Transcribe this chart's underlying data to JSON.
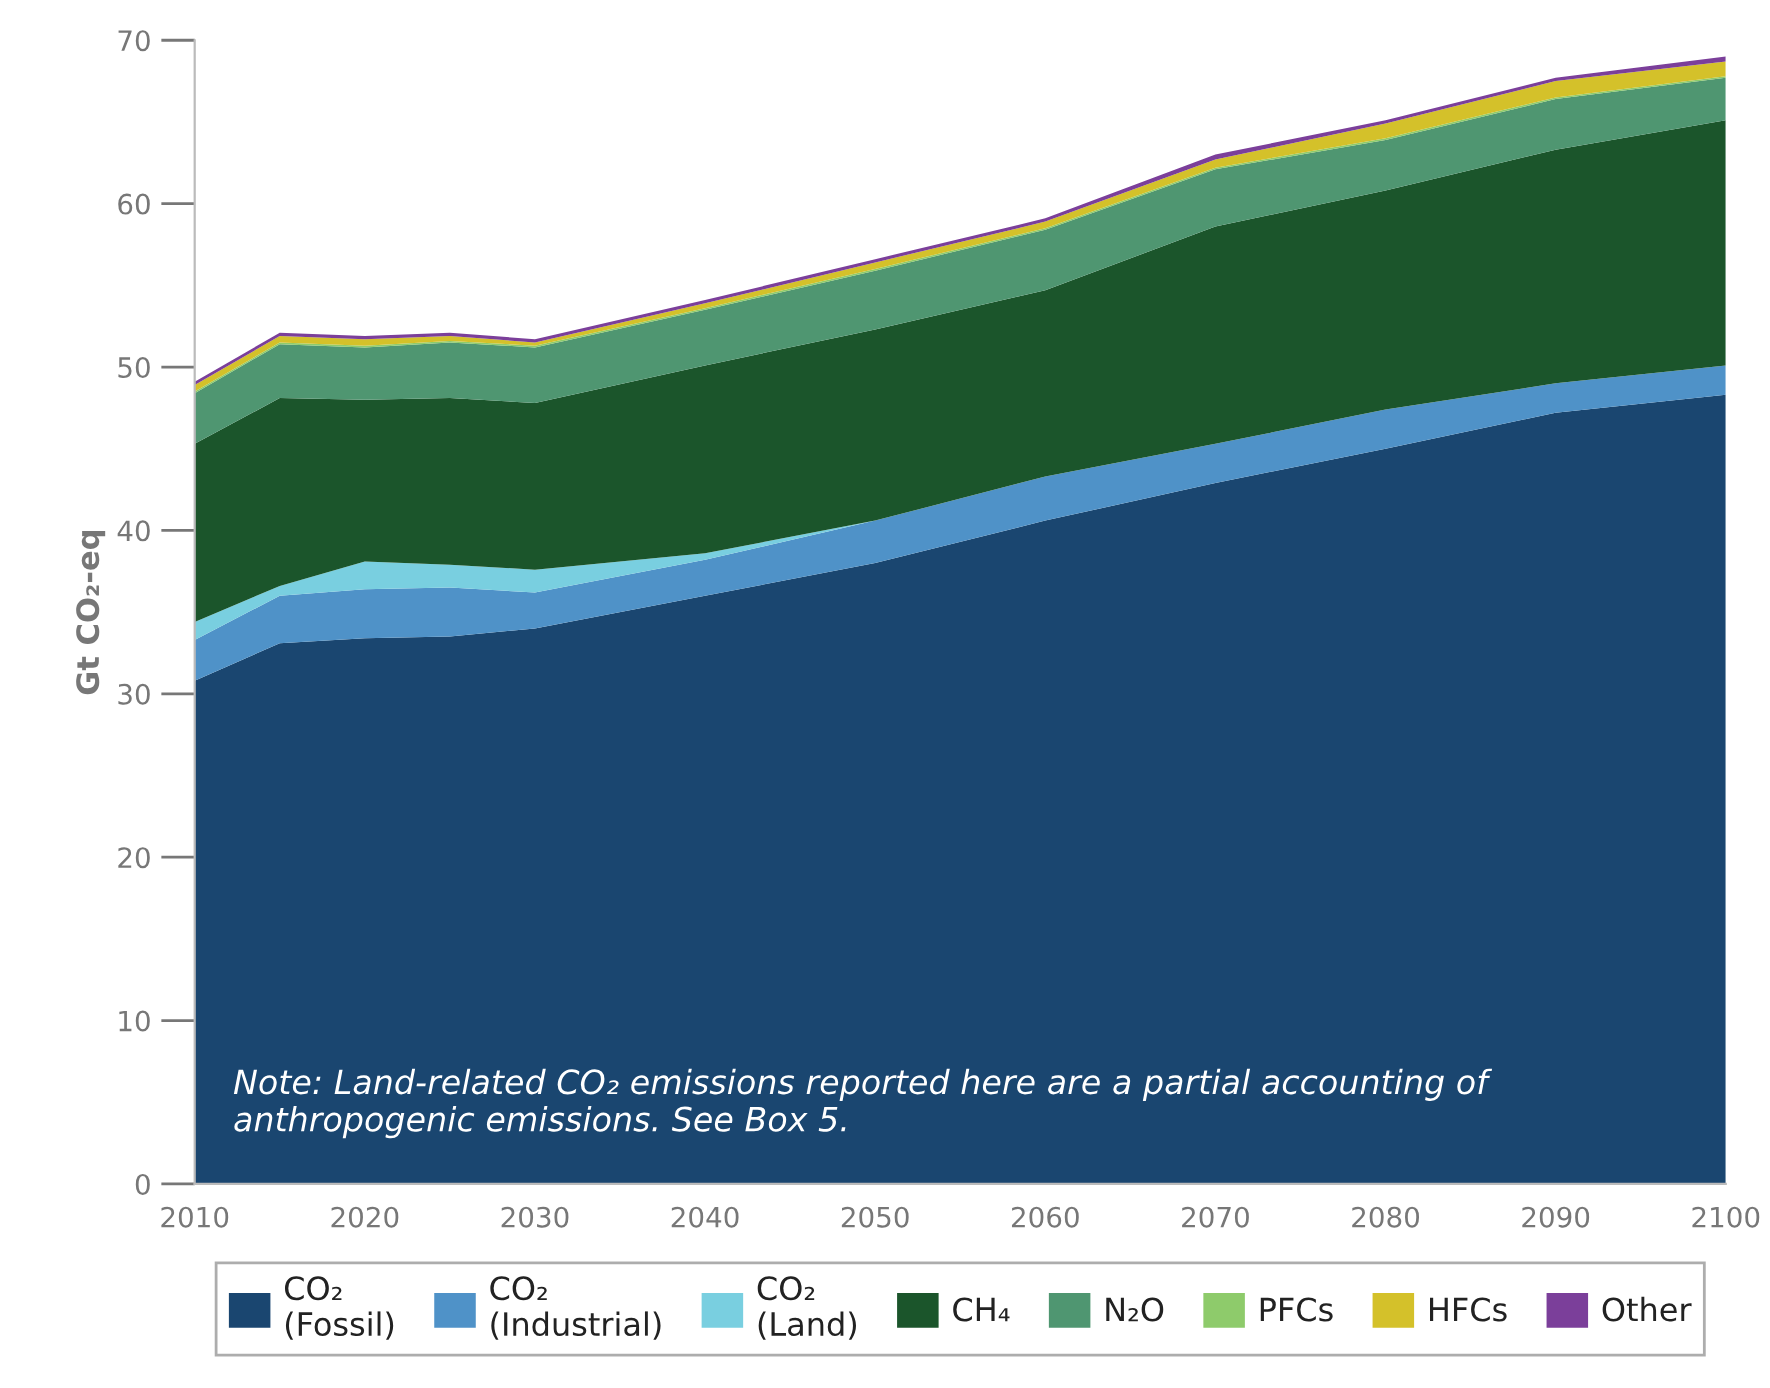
{
  "chart_data": {
    "type": "area",
    "stacked": true,
    "ylabel": "Gt CO₂-eq",
    "x": [
      2010,
      2015,
      2020,
      2025,
      2030,
      2040,
      2050,
      2060,
      2070,
      2080,
      2090,
      2100
    ],
    "xlim": [
      2010,
      2100
    ],
    "xticks": [
      2010,
      2020,
      2030,
      2040,
      2050,
      2060,
      2070,
      2080,
      2090,
      2100
    ],
    "ylim": [
      0,
      70
    ],
    "yticks": [
      0,
      10,
      20,
      30,
      40,
      50,
      60,
      70
    ],
    "grid": false,
    "legend": "bottom",
    "series": [
      {
        "name": "CO₂\n(Fossil)",
        "color": "#1a4670",
        "values": [
          30.8,
          33.1,
          33.4,
          33.5,
          34.0,
          36.0,
          38.0,
          40.6,
          42.9,
          45.0,
          47.2,
          48.3
        ]
      },
      {
        "name": "CO₂\n(Industrial)",
        "color": "#4f92c8",
        "values": [
          2.5,
          2.9,
          3.0,
          3.0,
          2.2,
          2.2,
          2.6,
          2.7,
          2.4,
          2.4,
          1.8,
          1.8
        ]
      },
      {
        "name": "CO₂\n(Land)",
        "color": "#79cfe0",
        "values": [
          1.1,
          0.6,
          1.7,
          1.4,
          1.4,
          0.4,
          0,
          0,
          0,
          0,
          0,
          0
        ]
      },
      {
        "name": "CH₄",
        "color": "#1b552b",
        "values": [
          10.9,
          11.5,
          9.9,
          10.2,
          10.2,
          11.5,
          11.7,
          11.4,
          13.3,
          13.4,
          14.3,
          15.0
        ]
      },
      {
        "name": "N₂O",
        "color": "#4f9671",
        "values": [
          3.1,
          3.3,
          3.2,
          3.4,
          3.4,
          3.4,
          3.6,
          3.7,
          3.5,
          3.1,
          3.1,
          2.6
        ]
      },
      {
        "name": "PFCs",
        "color": "#8ecb6b",
        "values": [
          0.1,
          0.1,
          0.1,
          0.1,
          0.1,
          0.1,
          0.1,
          0.1,
          0.1,
          0.1,
          0.1,
          0.1
        ]
      },
      {
        "name": "HFCs",
        "color": "#d4c12a",
        "values": [
          0.4,
          0.4,
          0.4,
          0.3,
          0.2,
          0.3,
          0.4,
          0.4,
          0.5,
          0.9,
          1.0,
          0.9
        ]
      },
      {
        "name": "Other",
        "color": "#7b3f9a",
        "values": [
          0.2,
          0.2,
          0.2,
          0.2,
          0.2,
          0.2,
          0.2,
          0.2,
          0.3,
          0.2,
          0.2,
          0.3
        ]
      }
    ],
    "annotations": [
      "Note: Land-related CO₂ emissions reported here are a partial accounting of anthropogenic emissions. See Box 5."
    ]
  }
}
